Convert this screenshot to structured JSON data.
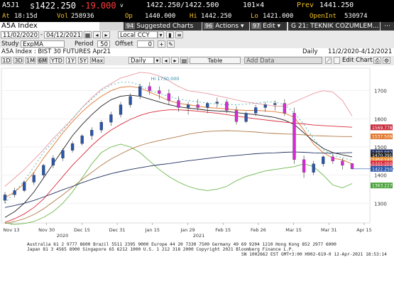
{
  "quote": {
    "ticker": "A5J1",
    "last": "s1422.250",
    "change": "-19.000",
    "bid_ask": "1422.250/1422.500",
    "size": "101×4",
    "prev_label": "Prev",
    "prev": "1441.250",
    "time_label": "At",
    "time": "18:15d",
    "vol_label": "Vol",
    "vol": "258936",
    "open_label": "Op",
    "open": "1440.000",
    "high_label": "Hi",
    "high": "1442.250",
    "low_label": "Lo",
    "low": "1421.000",
    "oi_label": "OpenInt",
    "oi": "530974"
  },
  "command_bar": {
    "security": "A5A Index",
    "suggested_num": "94",
    "suggested": "Suggested Charts",
    "actions_num": "96",
    "actions": "Actions",
    "edit_num": "97",
    "edit": "Edit",
    "g_title": "G 21: TEKNIK COZUMLEM..."
  },
  "toolbar1": {
    "start_date": "11/02/2020",
    "end_date": "04/12/2021",
    "currency": "Local CCY"
  },
  "toolbar2": {
    "study_label": "Study",
    "study": "ExpMA",
    "period_label": "Period",
    "period": "50",
    "offset_label": "Offset",
    "offset": "0"
  },
  "info": {
    "desc": "A5A Index : BIST 30 FUTURES   Apr21",
    "frequency": "Daily",
    "range": "11/2/2020-4/12/2021"
  },
  "period_buttons": [
    "1D",
    "3D",
    "1M",
    "6M",
    "YTD",
    "1Y",
    "5Y",
    "Max"
  ],
  "active_period": "6M",
  "freq_select": "Daily",
  "table_btn": "Table",
  "add_data": "Add Data",
  "edit_chart": "Edit Chart",
  "chart_data": {
    "type": "candlestick",
    "ylim": [
      1230,
      1780
    ],
    "yticks": [
      1300,
      1400,
      1500,
      1600,
      1700
    ],
    "xticks": [
      "Nov 13",
      "Nov 30",
      "Dec 15",
      "Dec 31",
      "Jan 15",
      "Jan 29",
      "Feb 15",
      "Feb 26",
      "Mar 15",
      "Mar 31",
      "Apr 15"
    ],
    "xsub": [
      "2020",
      "2021"
    ],
    "annotations": [
      {
        "text": "Hi 1730.000"
      }
    ],
    "price_tags": [
      {
        "value": "1569.778",
        "color": "#c8283a"
      },
      {
        "value": "1537.509",
        "color": "#e07830"
      },
      {
        "value": "1480.982",
        "color": "#203060"
      },
      {
        "value": "1470.391",
        "color": "#222222"
      },
      {
        "value": "1454.142",
        "color": "#f09a40"
      },
      {
        "value": "1441.250",
        "color": "#d82a3a"
      },
      {
        "value": "1431.052",
        "color": "#e06070"
      },
      {
        "value": "1422.250",
        "color": "#2a55a8"
      },
      {
        "value": "1363.227",
        "color": "#4aa23a"
      }
    ],
    "bands": {
      "upper_pink": [
        1360,
        1390,
        1420,
        1455,
        1490,
        1530,
        1565,
        1600,
        1640,
        1675,
        1705,
        1725,
        1745,
        1755,
        1765,
        1762,
        1752,
        1735,
        1715,
        1700,
        1695,
        1690,
        1682,
        1675,
        1667,
        1660,
        1655,
        1650,
        1645,
        1645,
        1660,
        1675,
        1690,
        1700,
        1695,
        1665,
        1610
      ],
      "lower_green": [
        1230,
        1225,
        1228,
        1235,
        1250,
        1270,
        1300,
        1340,
        1390,
        1440,
        1480,
        1500,
        1510,
        1500,
        1480,
        1450,
        1420,
        1395,
        1375,
        1360,
        1350,
        1345,
        1350,
        1360,
        1380,
        1395,
        1405,
        1415,
        1420,
        1425,
        1430,
        1440,
        1430,
        1400,
        1365,
        1355,
        1370
      ]
    },
    "ema_series": [
      {
        "name": "ema20",
        "color": "#e07830",
        "values": [
          1320,
          1340,
          1370,
          1410,
          1460,
          1505,
          1550,
          1590,
          1625,
          1655,
          1680,
          1700,
          1712,
          1715,
          1710,
          1695,
          1680,
          1665,
          1655,
          1650,
          1645,
          1640,
          1638,
          1635,
          1632,
          1630,
          1630,
          1628,
          1625,
          1620,
          1605,
          1560,
          1510,
          1480,
          1460,
          1454,
          1440
        ]
      },
      {
        "name": "black50",
        "color": "#222222",
        "values": [
          1250,
          1270,
          1300,
          1340,
          1390,
          1440,
          1490,
          1540,
          1580,
          1615,
          1645,
          1668,
          1680,
          1684,
          1680,
          1670,
          1660,
          1650,
          1643,
          1638,
          1635,
          1630,
          1628,
          1626,
          1622,
          1618,
          1615,
          1610,
          1605,
          1595,
          1580,
          1550,
          1520,
          1495,
          1480,
          1472,
          1465
        ]
      },
      {
        "name": "red_ema",
        "color": "#d82a3a",
        "values": [
          1232,
          1245,
          1262,
          1285,
          1315,
          1355,
          1395,
          1435,
          1470,
          1505,
          1535,
          1560,
          1580,
          1598,
          1612,
          1622,
          1628,
          1632,
          1632,
          1630,
          1627,
          1623,
          1620,
          1615,
          1610,
          1605,
          1600,
          1596,
          1592,
          1588,
          1585,
          1582,
          1578,
          1576,
          1574,
          1572,
          1570
        ]
      },
      {
        "name": "tan_ema",
        "color": "#b07a48",
        "values": [
          1228,
          1235,
          1245,
          1260,
          1280,
          1305,
          1330,
          1357,
          1385,
          1410,
          1435,
          1457,
          1475,
          1492,
          1505,
          1515,
          1523,
          1530,
          1537,
          1545,
          1551,
          1555,
          1557,
          1558,
          1557,
          1555,
          1553,
          1550,
          1548,
          1546,
          1545,
          1543,
          1540,
          1539,
          1538,
          1537,
          1537
        ]
      },
      {
        "name": "navy200",
        "color": "#203060",
        "values": [
          1285,
          1292,
          1300,
          1310,
          1322,
          1335,
          1348,
          1360,
          1373,
          1385,
          1395,
          1405,
          1413,
          1420,
          1426,
          1432,
          1437,
          1441,
          1446,
          1451,
          1455,
          1459,
          1463,
          1467,
          1470,
          1473,
          1476,
          1478,
          1479,
          1481,
          1482,
          1481,
          1479,
          1478,
          1478,
          1479,
          1480
        ]
      },
      {
        "name": "dashed_cyan",
        "color": "#4ab0b0",
        "values": [
          1300,
          1340,
          1380,
          1430,
          1480,
          1520,
          1560,
          1600,
          1640,
          1670,
          1700,
          1720,
          1730,
          1730,
          1720,
          1700,
          1690,
          1680,
          1670,
          1665,
          1660,
          1656,
          1652,
          1650,
          1650,
          1652,
          1655,
          1660,
          1660,
          1650,
          1620,
          1580,
          1530,
          1490,
          1470,
          1462,
          1452
        ]
      }
    ],
    "candles": [
      [
        1310,
        1340,
        1300,
        1330
      ],
      [
        1330,
        1355,
        1320,
        1345
      ],
      [
        1345,
        1380,
        1340,
        1375
      ],
      [
        1375,
        1410,
        1365,
        1400
      ],
      [
        1400,
        1440,
        1390,
        1435
      ],
      [
        1435,
        1470,
        1425,
        1460
      ],
      [
        1460,
        1495,
        1450,
        1488
      ],
      [
        1488,
        1520,
        1480,
        1512
      ],
      [
        1512,
        1545,
        1505,
        1540
      ],
      [
        1540,
        1570,
        1525,
        1560
      ],
      [
        1560,
        1595,
        1550,
        1588
      ],
      [
        1588,
        1625,
        1575,
        1615
      ],
      [
        1615,
        1660,
        1605,
        1650
      ],
      [
        1650,
        1690,
        1640,
        1680
      ],
      [
        1680,
        1725,
        1670,
        1715
      ],
      [
        1715,
        1730,
        1685,
        1700
      ],
      [
        1700,
        1715,
        1670,
        1690
      ],
      [
        1690,
        1705,
        1650,
        1665
      ],
      [
        1665,
        1680,
        1625,
        1640
      ],
      [
        1640,
        1660,
        1615,
        1650
      ],
      [
        1650,
        1670,
        1630,
        1640
      ],
      [
        1640,
        1660,
        1620,
        1655
      ],
      [
        1655,
        1675,
        1640,
        1660
      ],
      [
        1660,
        1670,
        1620,
        1630
      ],
      [
        1630,
        1645,
        1580,
        1590
      ],
      [
        1590,
        1625,
        1585,
        1620
      ],
      [
        1620,
        1650,
        1610,
        1640
      ],
      [
        1640,
        1660,
        1625,
        1650
      ],
      [
        1650,
        1665,
        1630,
        1655
      ],
      [
        1655,
        1670,
        1610,
        1620
      ],
      [
        1620,
        1640,
        1440,
        1455
      ],
      [
        1455,
        1470,
        1390,
        1410
      ],
      [
        1410,
        1450,
        1400,
        1440
      ],
      [
        1440,
        1470,
        1430,
        1465
      ],
      [
        1465,
        1475,
        1440,
        1450
      ],
      [
        1450,
        1460,
        1420,
        1435
      ],
      [
        1441,
        1442,
        1421,
        1422
      ]
    ]
  },
  "footer": {
    "l1": "Australia 61 2 9777 8600  Brazil 5511 2395 9000  Europe 44 20 7330 7500  Germany 49 69 9204 1210  Hong Kong 852 2977 6000",
    "l2": "Japan 81 3 4565 8900         Singapore 65 6212 1000         U.S. 1 212 318 2000          Copyright 2021 Bloomberg Finance L.P.",
    "l3": "SN 1002662 EST  GMT+3:00 H902-619-0 12-Apr-2021 18:53:14"
  }
}
